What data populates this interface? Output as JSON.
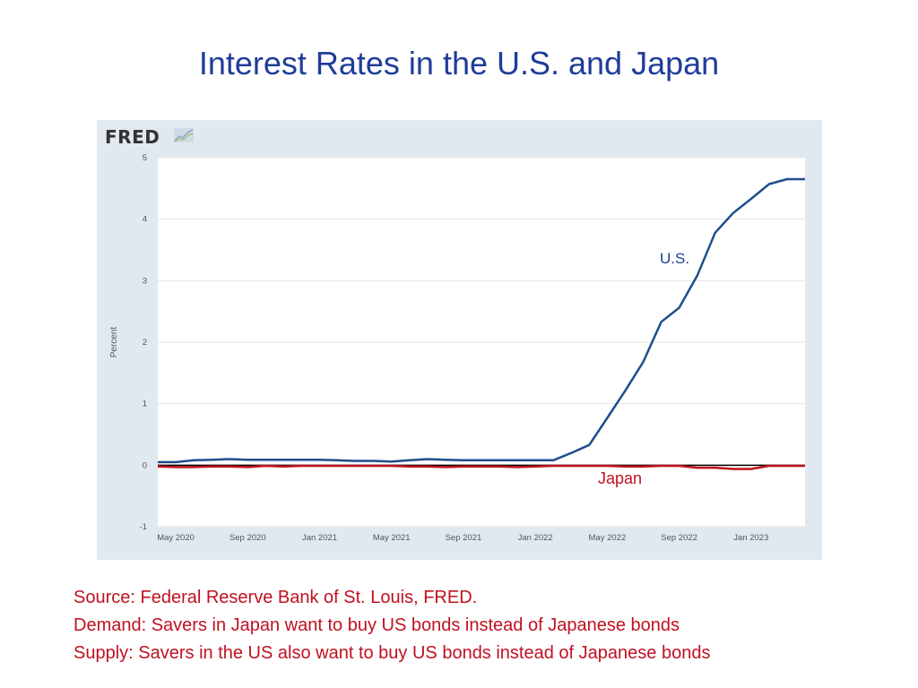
{
  "slide": {
    "title": "Interest Rates in the U.S. and Japan",
    "notes": [
      "Source:  Federal Reserve Bank of St. Louis, FRED.",
      "Demand: Savers in Japan want to buy US bonds instead of Japanese bonds",
      "Supply: Savers in the US also want to buy US bonds instead of Japanese bonds"
    ]
  },
  "fred": {
    "logo_text": "FRED",
    "logo_icon": "fred-chart-icon"
  },
  "chart_data": {
    "type": "line",
    "title": "",
    "xlabel": "",
    "ylabel": "Percent",
    "ylim": [
      -1,
      5
    ],
    "y_ticks": [
      -1,
      0,
      1,
      2,
      3,
      4,
      5
    ],
    "x_ticks": [
      "May 2020",
      "Sep 2020",
      "Jan 2021",
      "May 2021",
      "Sep 2021",
      "Jan 2022",
      "May 2022",
      "Sep 2022",
      "Jan 2023"
    ],
    "x": [
      "2020-04",
      "2020-05",
      "2020-06",
      "2020-07",
      "2020-08",
      "2020-09",
      "2020-10",
      "2020-11",
      "2020-12",
      "2021-01",
      "2021-02",
      "2021-03",
      "2021-04",
      "2021-05",
      "2021-06",
      "2021-07",
      "2021-08",
      "2021-09",
      "2021-10",
      "2021-11",
      "2021-12",
      "2022-01",
      "2022-02",
      "2022-03",
      "2022-04",
      "2022-05",
      "2022-06",
      "2022-07",
      "2022-08",
      "2022-09",
      "2022-10",
      "2022-11",
      "2022-12",
      "2023-01",
      "2023-02",
      "2023-03",
      "2023-04"
    ],
    "series": [
      {
        "name": "U.S.",
        "color": "#1f4e8c",
        "values": [
          0.05,
          0.05,
          0.08,
          0.09,
          0.1,
          0.09,
          0.09,
          0.09,
          0.09,
          0.09,
          0.08,
          0.07,
          0.07,
          0.06,
          0.08,
          0.1,
          0.09,
          0.08,
          0.08,
          0.08,
          0.08,
          0.08,
          0.08,
          0.2,
          0.33,
          0.77,
          1.21,
          1.68,
          2.33,
          2.56,
          3.08,
          3.78,
          4.1,
          4.33,
          4.57,
          4.65,
          4.65
        ]
      },
      {
        "name": "Japan",
        "color": "#c0111f",
        "values": [
          -0.02,
          -0.03,
          -0.03,
          -0.02,
          -0.02,
          -0.03,
          -0.01,
          -0.02,
          -0.01,
          -0.01,
          -0.01,
          -0.01,
          -0.01,
          -0.01,
          -0.02,
          -0.02,
          -0.03,
          -0.02,
          -0.02,
          -0.02,
          -0.03,
          -0.02,
          -0.01,
          -0.01,
          -0.01,
          -0.01,
          -0.02,
          -0.02,
          -0.01,
          -0.01,
          -0.04,
          -0.04,
          -0.06,
          -0.06,
          -0.01,
          -0.01,
          -0.01
        ]
      }
    ],
    "annotations": [
      {
        "text": "U.S.",
        "series": "U.S."
      },
      {
        "text": "Japan",
        "series": "Japan"
      }
    ],
    "zero_line": true,
    "grid": true,
    "legend": "none"
  }
}
